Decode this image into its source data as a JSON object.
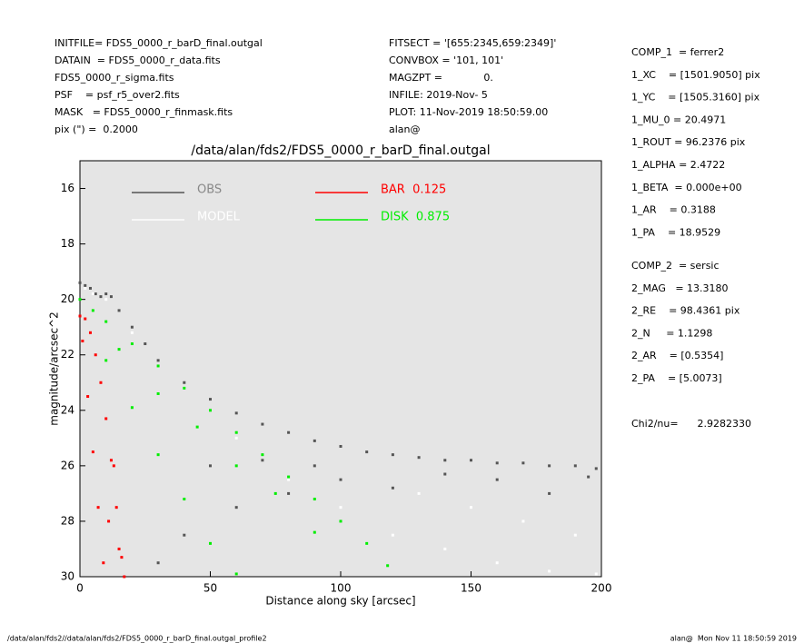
{
  "header": {
    "left": [
      "INITFILE= FDS5_0000_r_barD_final.outgal",
      "DATAIN  = FDS5_0000_r_data.fits",
      "FDS5_0000_r_sigma.fits",
      "PSF    = psf_r5_over2.fits",
      "MASK   = FDS5_0000_r_finmask.fits",
      "pix (\") =  0.2000"
    ],
    "middle": [
      "FITSECT = '[655:2345,659:2349]'",
      "CONVBOX = '101, 101'",
      "MAGZPT =             0.",
      "INFILE: 2019-Nov- 5",
      "PLOT: 11-Nov-2019 18:50:59.00",
      "alan@"
    ]
  },
  "params": {
    "comp1": [
      "COMP_1  = ferrer2",
      "1_XC    = [1501.9050] pix",
      "1_YC    = [1505.3160] pix",
      "1_MU_0 = 20.4971",
      "1_ROUT = 96.2376 pix",
      "1_ALPHA = 2.4722",
      "1_BETA  = 0.000e+00",
      "1_AR    = 0.3188",
      "1_PA    = 18.9529"
    ],
    "comp2": [
      "COMP_2  = sersic",
      "2_MAG   = 13.3180",
      "2_RE    = 98.4361 pix",
      "2_N     = 1.1298",
      "2_AR    = [0.5354]",
      "2_PA    = [5.0073]"
    ],
    "chi2": "Chi2/nu=      2.9282330"
  },
  "footer": {
    "left": "/data/alan/fds2//data/alan/fds2/FDS5_0000_r_barD_final.outgal_profile2",
    "right": "alan@  Mon Nov 11 18:50:59 2019"
  },
  "chart_data": {
    "type": "scatter",
    "title": "/data/alan/fds2/FDS5_0000_r_barD_final.outgal",
    "x_label": "Distance along sky [arcsec]",
    "y_label": "magnitude/arcsec^2",
    "xlim": [
      0,
      200
    ],
    "xticks": [
      0,
      50,
      100,
      150,
      200
    ],
    "ylim": [
      15,
      30
    ],
    "y_inverted": true,
    "yticks": [
      16,
      18,
      20,
      22,
      24,
      26,
      28,
      30
    ],
    "series": [
      {
        "name": "OBS",
        "color": "#555555",
        "x": [
          0,
          2,
          4,
          6,
          8,
          10,
          12,
          15,
          20,
          25,
          30,
          40,
          50,
          60,
          70,
          80,
          90,
          100,
          110,
          120,
          130,
          140,
          150,
          160,
          170,
          180,
          190,
          198,
          40,
          60,
          80,
          100,
          120,
          140,
          160,
          180,
          195,
          30,
          50,
          70,
          90
        ],
        "y": [
          19.4,
          19.5,
          19.6,
          19.8,
          19.9,
          19.8,
          19.9,
          20.4,
          21.0,
          21.6,
          22.2,
          23.0,
          23.6,
          24.1,
          24.5,
          24.8,
          25.1,
          25.3,
          25.5,
          25.6,
          25.7,
          25.8,
          25.8,
          25.9,
          25.9,
          26.0,
          26.0,
          26.1,
          28.5,
          27.5,
          27.0,
          26.5,
          26.8,
          26.3,
          26.5,
          27.0,
          26.4,
          29.5,
          26.0,
          25.8,
          26.0
        ]
      },
      {
        "name": "MODEL",
        "color": "#ffffff",
        "x": [
          2,
          5,
          10,
          20,
          40,
          60,
          80,
          100,
          120,
          140,
          160,
          180,
          198,
          150,
          170,
          190,
          130,
          110
        ],
        "y": [
          19.6,
          19.8,
          20.0,
          21.2,
          23.2,
          25.0,
          26.5,
          27.5,
          28.5,
          29.0,
          29.5,
          29.8,
          29.9,
          27.5,
          28.0,
          28.5,
          27.0,
          28.8
        ]
      },
      {
        "name": "BAR  0.125",
        "color": "#ff0000",
        "x": [
          0,
          2,
          4,
          6,
          8,
          10,
          12,
          14,
          16,
          17,
          1,
          3,
          5,
          7,
          9,
          11,
          13,
          15
        ],
        "y": [
          20.6,
          20.7,
          21.2,
          22.0,
          23.0,
          24.3,
          25.8,
          27.5,
          29.3,
          30.0,
          21.5,
          23.5,
          25.5,
          27.5,
          29.5,
          28.0,
          26.0,
          29.0
        ]
      },
      {
        "name": "DISK  0.875",
        "color": "#00ee00",
        "x": [
          0,
          5,
          10,
          20,
          30,
          40,
          50,
          60,
          70,
          80,
          90,
          100,
          110,
          118,
          10,
          20,
          30,
          40,
          50,
          60,
          15,
          30,
          45,
          60,
          75,
          90
        ],
        "y": [
          20.0,
          20.4,
          20.8,
          21.6,
          22.4,
          23.2,
          24.0,
          24.8,
          25.6,
          26.4,
          27.2,
          28.0,
          28.8,
          29.6,
          22.2,
          23.9,
          25.6,
          27.2,
          28.8,
          29.9,
          21.8,
          23.4,
          24.6,
          26.0,
          27.0,
          28.4
        ]
      }
    ]
  }
}
